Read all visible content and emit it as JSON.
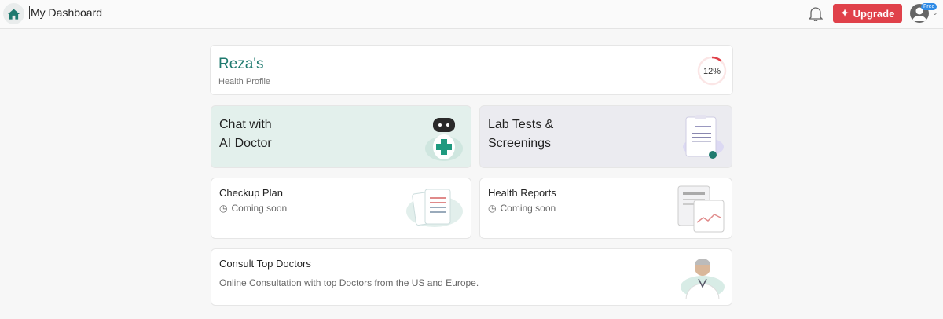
{
  "header": {
    "title": "My Dashboard",
    "upgrade_label": "Upgrade",
    "plan_badge": "Free"
  },
  "profile": {
    "name": "Reza's",
    "subtitle": "Health Profile",
    "completion_percent": 12,
    "completion_label": "12%"
  },
  "cards": [
    {
      "line1": "Chat with",
      "line2": "AI Doctor"
    },
    {
      "line1": "Lab Tests &",
      "line2": "Screenings"
    },
    {
      "title": "Checkup Plan",
      "status": "Coming soon"
    },
    {
      "title": "Health Reports",
      "status": "Coming soon"
    },
    {
      "title": "Consult Top Doctors",
      "subtitle": "Online Consultation with top Doctors from the US and Europe."
    }
  ],
  "colors": {
    "accent": "#1f7a6f",
    "upgrade": "#e0414a",
    "badge": "#2f8be6",
    "chat_bg": "#e3f0ec",
    "lab_bg": "#ebebf0"
  }
}
